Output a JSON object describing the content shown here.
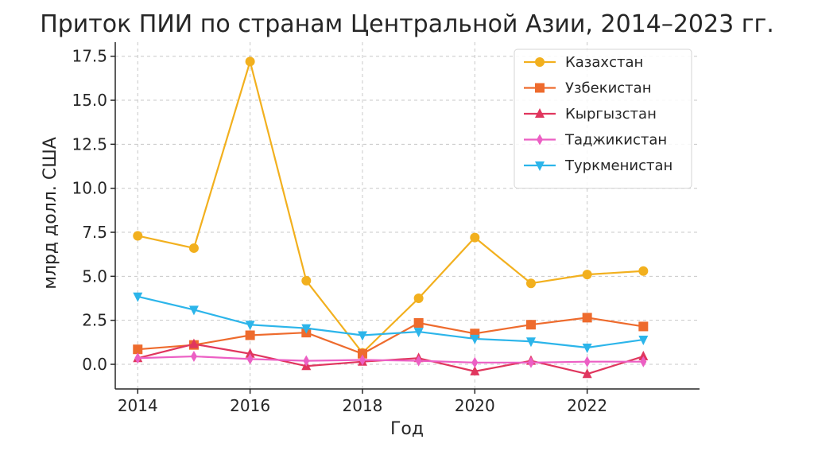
{
  "chart_data": {
    "type": "line",
    "title": "Приток ПИИ по странам Центральной Азии, 2014–2023 гг.",
    "xlabel": "Год",
    "ylabel": "млрд долл. США",
    "x": [
      2014,
      2015,
      2016,
      2017,
      2018,
      2019,
      2020,
      2021,
      2022,
      2023
    ],
    "xticks": [
      "2014",
      "2016",
      "2018",
      "2020",
      "2022"
    ],
    "yticks": [
      "0.0",
      "2.5",
      "5.0",
      "7.5",
      "10.0",
      "12.5",
      "15.0",
      "17.5"
    ],
    "xlim": [
      2013.6,
      2024.0
    ],
    "ylim": [
      -1.4,
      18.3
    ],
    "grid": true,
    "legend_position": "top-right",
    "series": [
      {
        "name": "Казахстан",
        "color": "#f2b01e",
        "marker": "circle",
        "values": [
          7.3,
          6.6,
          17.2,
          4.75,
          0.65,
          3.75,
          7.2,
          4.6,
          5.1,
          5.3
        ]
      },
      {
        "name": "Узбекистан",
        "color": "#ee6b2d",
        "marker": "square",
        "values": [
          0.85,
          1.1,
          1.65,
          1.8,
          0.6,
          2.35,
          1.75,
          2.25,
          2.65,
          2.15
        ]
      },
      {
        "name": "Кыргызстан",
        "color": "#e0365e",
        "marker": "triangle-up",
        "values": [
          0.35,
          1.15,
          0.6,
          -0.1,
          0.15,
          0.35,
          -0.4,
          0.2,
          -0.55,
          0.45
        ]
      },
      {
        "name": "Таджикистан",
        "color": "#ec5fc4",
        "marker": "diamond",
        "values": [
          0.35,
          0.45,
          0.3,
          0.2,
          0.25,
          0.2,
          0.1,
          0.1,
          0.15,
          0.15
        ]
      },
      {
        "name": "Туркменистан",
        "color": "#2cb5ea",
        "marker": "triangle-down",
        "values": [
          3.85,
          3.1,
          2.25,
          2.05,
          1.65,
          1.85,
          1.45,
          1.3,
          0.95,
          1.4
        ]
      }
    ]
  }
}
